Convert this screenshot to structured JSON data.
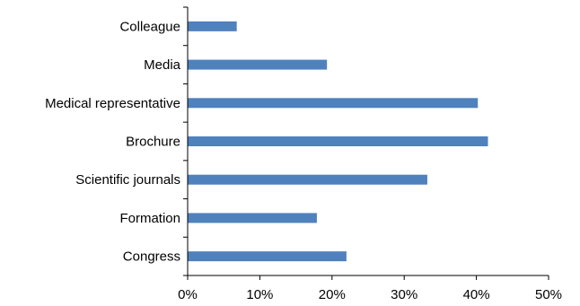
{
  "chart_data": {
    "type": "bar",
    "orientation": "horizontal",
    "categories": [
      "Colleague",
      "Media",
      "Medical representative",
      "Brochure",
      "Scientific journals",
      "Formation",
      "Congress"
    ],
    "values": [
      6.8,
      19.3,
      40.2,
      41.6,
      33.2,
      17.9,
      22.0
    ],
    "xlim": [
      0,
      50
    ],
    "x_ticks": [
      0,
      10,
      20,
      30,
      40,
      50
    ],
    "x_tick_labels": [
      "0%",
      "10%",
      "20%",
      "30%",
      "40%",
      "50%"
    ],
    "title": "",
    "xlabel": "",
    "ylabel": "",
    "grid": false,
    "legend": "none",
    "bar_color": "#4f81bd"
  }
}
